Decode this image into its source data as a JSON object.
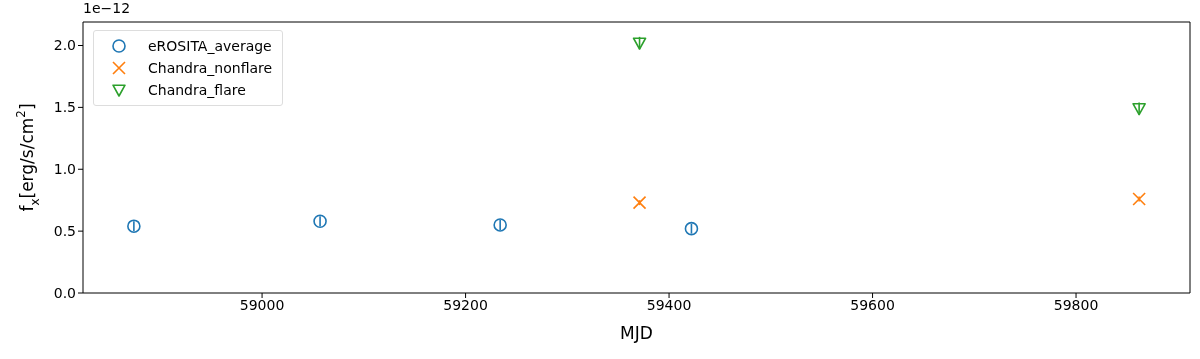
{
  "chart_data": {
    "type": "scatter",
    "xlabel": "MJD",
    "ylabel": "f$_{x}$[erg/s/cm$^{2}$]",
    "annotations": [
      "1e−12"
    ],
    "xlim": [
      58824,
      59912
    ],
    "xticks": [
      59000,
      59200,
      59400,
      59600,
      59800
    ],
    "ylim": [
      0,
      2.19
    ],
    "yticks": [
      {
        "value": 0,
        "label": "0.0"
      },
      0.5,
      {
        "value": 1,
        "label": "1.0"
      },
      1.5,
      {
        "value": 2,
        "label": "2.0"
      }
    ],
    "legend": "top left",
    "series": [
      {
        "name": "eROSITA_average",
        "color": "#1f77b4",
        "marker": "circle",
        "x": [
          58874,
          59057,
          59234,
          59422
        ],
        "values": [
          0.54,
          0.58,
          0.55,
          0.52
        ],
        "errors": [
          0.04,
          0.04,
          0.04,
          0.04
        ]
      },
      {
        "name": "Chandra_nonflare",
        "color": "#ff7f0e",
        "marker": "cross",
        "x": [
          59371,
          59862
        ],
        "values": [
          0.73,
          0.76
        ],
        "errors": [
          0.02,
          0.02
        ]
      },
      {
        "name": "Chandra_flare",
        "color": "#2ca02c",
        "marker": "triangle",
        "x": [
          59371,
          59862
        ],
        "values": [
          2.02,
          1.49
        ],
        "errors": [
          0.05,
          0.05
        ]
      }
    ]
  }
}
